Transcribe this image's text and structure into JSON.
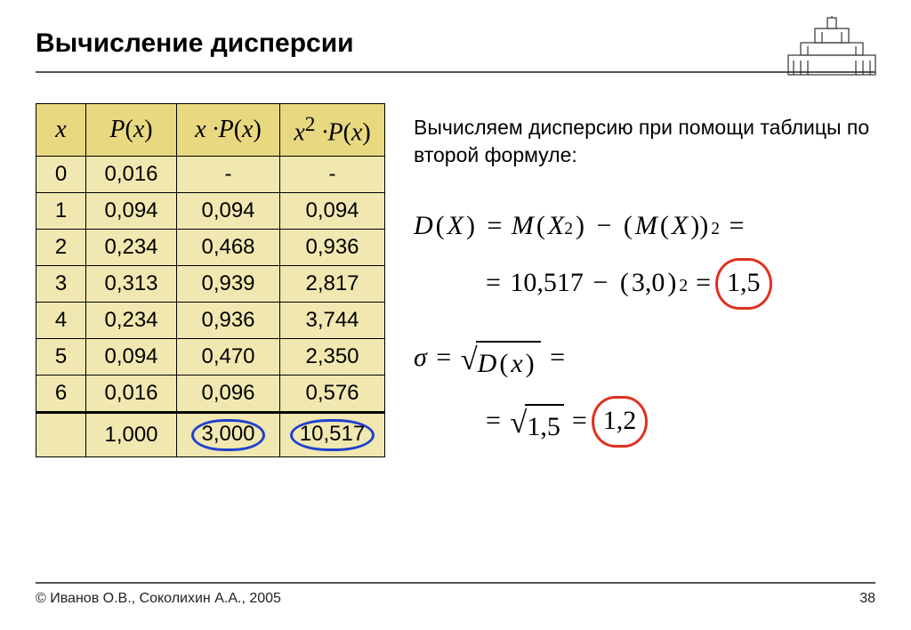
{
  "title": "Вычисление дисперсии",
  "logo_alt": "MSU building silhouette",
  "table": {
    "headers": [
      "x",
      "P(x)",
      "x ·P(x)",
      "x² ·P(x)"
    ],
    "header_bg": "#e8d880",
    "body_bg": "#f0e8b0",
    "rows": [
      [
        "0",
        "0,016",
        "-",
        "-"
      ],
      [
        "1",
        "0,094",
        "0,094",
        "0,094"
      ],
      [
        "2",
        "0,234",
        "0,468",
        "0,936"
      ],
      [
        "3",
        "0,313",
        "0,939",
        "2,817"
      ],
      [
        "4",
        "0,234",
        "0,936",
        "3,744"
      ],
      [
        "5",
        "0,094",
        "0,470",
        "2,350"
      ],
      [
        "6",
        "0,016",
        "0,096",
        "0,576"
      ]
    ],
    "total": [
      "",
      "1,000",
      "3,000",
      "10,517"
    ],
    "blue_circle_cols": [
      2,
      3
    ]
  },
  "description": "Вычисляем дисперсию при помощи таблицы по второй формуле:",
  "formula1": {
    "line1_parts": [
      "D",
      "(",
      "X",
      ")",
      " = ",
      "M",
      "(",
      "X",
      "²",
      ")",
      " − ",
      "(",
      "M",
      "(",
      "X",
      "))",
      "²",
      " ="
    ],
    "line2_plain": "= 10,517 − (3,0)² ",
    "line2_result": "= 1,5",
    "result_circled": true
  },
  "formula2": {
    "line1_lhs": "σ = ",
    "line1_rad": "D(x)",
    "line1_tail": " =",
    "line2_pre": "= ",
    "line2_rad": "1,5",
    "line2_result": " = 1,2",
    "result_value": "1,2"
  },
  "footer": {
    "copyright": "© Иванов О.В., Соколихин А.А., 2005",
    "page": "38"
  },
  "colors": {
    "header_bg": "#e8d880",
    "body_bg": "#f0e8b0",
    "red": "#e03020",
    "blue": "#2040d0",
    "rule": "#555555"
  }
}
